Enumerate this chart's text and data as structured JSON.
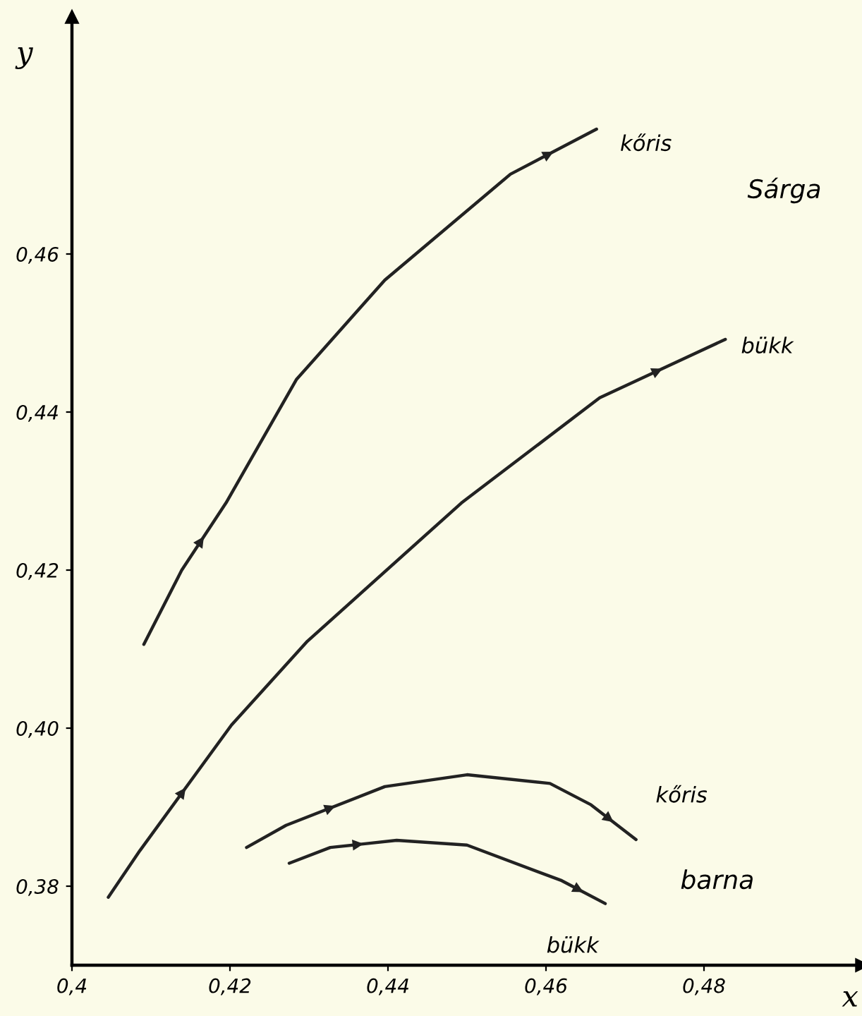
{
  "chart_data": {
    "type": "line",
    "xlabel": "x",
    "ylabel": "y",
    "xlim": [
      0.4,
      0.5
    ],
    "ylim": [
      0.37,
      0.49
    ],
    "xticks": [
      {
        "value": 0.4,
        "label": "0,4"
      },
      {
        "value": 0.42,
        "label": "0,42"
      },
      {
        "value": 0.44,
        "label": "0,44"
      },
      {
        "value": 0.46,
        "label": "0,46"
      },
      {
        "value": 0.48,
        "label": "0,48"
      }
    ],
    "yticks": [
      {
        "value": 0.38,
        "label": "0,38"
      },
      {
        "value": 0.4,
        "label": "0,40"
      },
      {
        "value": 0.42,
        "label": "0,42"
      },
      {
        "value": 0.44,
        "label": "0,44"
      },
      {
        "value": 0.46,
        "label": "0,46"
      }
    ],
    "grid": false,
    "legend": false,
    "marker": "none",
    "line_style": "solid",
    "annotations": [
      "Sárga",
      "barna"
    ],
    "series": [
      {
        "name": "kőris",
        "color": "#222222",
        "x": [
          0.4091,
          0.4139,
          0.4195,
          0.4284,
          0.4396,
          0.4555,
          0.4664
        ],
        "values": [
          0.4106,
          0.42,
          0.4285,
          0.4441,
          0.4567,
          0.4701,
          0.4758
        ]
      },
      {
        "name": "bükk",
        "color": "#222222",
        "x": [
          0.4046,
          0.4086,
          0.4202,
          0.4298,
          0.4493,
          0.4668,
          0.4827
        ],
        "values": [
          0.3786,
          0.3845,
          0.4004,
          0.411,
          0.4285,
          0.4418,
          0.4492
        ]
      },
      {
        "name": "kőris",
        "color": "#222222",
        "x": [
          0.4221,
          0.4271,
          0.4396,
          0.45,
          0.4605,
          0.4657,
          0.4714
        ],
        "values": [
          0.3849,
          0.3877,
          0.3926,
          0.3941,
          0.393,
          0.3903,
          0.3859
        ]
      },
      {
        "name": "bükk",
        "color": "#222222",
        "x": [
          0.4275,
          0.4327,
          0.4411,
          0.45,
          0.462,
          0.4675
        ],
        "values": [
          0.3829,
          0.3849,
          0.3858,
          0.3852,
          0.3807,
          0.3778
        ]
      }
    ]
  }
}
